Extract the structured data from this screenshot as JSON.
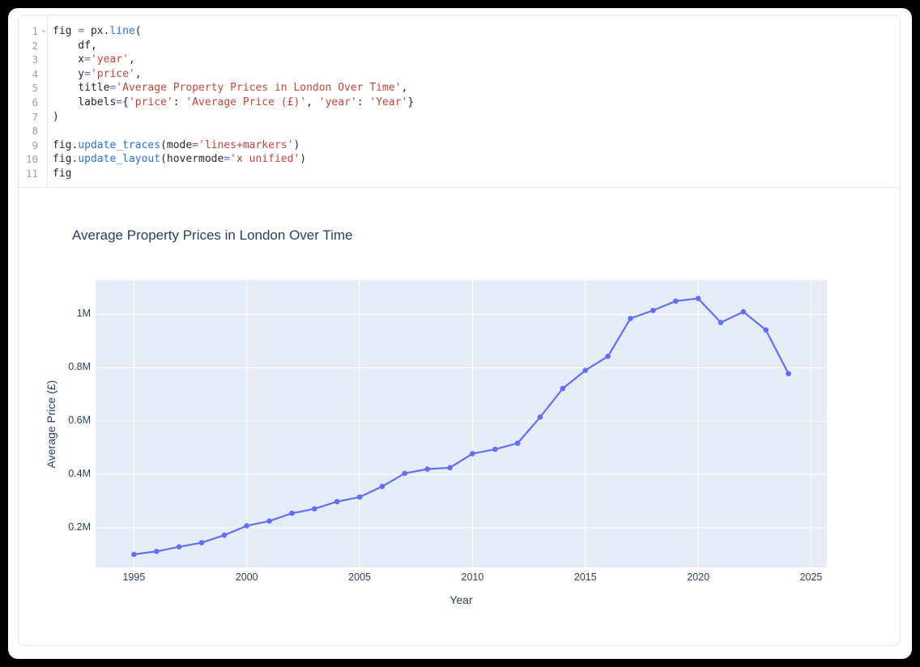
{
  "editor": {
    "fold_icon": "⌄",
    "lines": [
      {
        "num": "1",
        "tokens": [
          [
            "p",
            "fig "
          ],
          [
            "op",
            "="
          ],
          [
            "p",
            " px."
          ],
          [
            "fn",
            "line"
          ],
          [
            "p",
            "("
          ]
        ]
      },
      {
        "num": "2",
        "tokens": [
          [
            "p",
            "    df,"
          ]
        ]
      },
      {
        "num": "3",
        "tokens": [
          [
            "p",
            "    x"
          ],
          [
            "op",
            "="
          ],
          [
            "str",
            "'year'"
          ],
          [
            "p",
            ","
          ]
        ]
      },
      {
        "num": "4",
        "tokens": [
          [
            "p",
            "    y"
          ],
          [
            "op",
            "="
          ],
          [
            "str",
            "'price'"
          ],
          [
            "p",
            ","
          ]
        ]
      },
      {
        "num": "5",
        "tokens": [
          [
            "p",
            "    title"
          ],
          [
            "op",
            "="
          ],
          [
            "str",
            "'Average Property Prices in London Over Time'"
          ],
          [
            "p",
            ","
          ]
        ]
      },
      {
        "num": "6",
        "tokens": [
          [
            "p",
            "    labels"
          ],
          [
            "op",
            "="
          ],
          [
            "p",
            "{"
          ],
          [
            "str",
            "'price'"
          ],
          [
            "p",
            ": "
          ],
          [
            "str",
            "'Average Price (£)'"
          ],
          [
            "p",
            ", "
          ],
          [
            "str",
            "'year'"
          ],
          [
            "p",
            ": "
          ],
          [
            "str",
            "'Year'"
          ],
          [
            "p",
            "}"
          ]
        ]
      },
      {
        "num": "7",
        "tokens": [
          [
            "p",
            ")"
          ]
        ]
      },
      {
        "num": "8",
        "tokens": []
      },
      {
        "num": "9",
        "tokens": [
          [
            "p",
            "fig."
          ],
          [
            "fn",
            "update_traces"
          ],
          [
            "p",
            "(mode"
          ],
          [
            "op",
            "="
          ],
          [
            "str",
            "'lines+markers'"
          ],
          [
            "p",
            ")"
          ]
        ]
      },
      {
        "num": "10",
        "tokens": [
          [
            "p",
            "fig."
          ],
          [
            "fn",
            "update_layout"
          ],
          [
            "p",
            "(hovermode"
          ],
          [
            "op",
            "="
          ],
          [
            "str",
            "'x unified'"
          ],
          [
            "p",
            ")"
          ]
        ]
      },
      {
        "num": "11",
        "tokens": [
          [
            "p",
            "fig"
          ]
        ]
      }
    ]
  },
  "chart_data": {
    "type": "line",
    "title": "Average Property Prices in London Over Time",
    "xlabel": "Year",
    "ylabel": "Average Price (£)",
    "x": [
      1995,
      1996,
      1997,
      1998,
      1999,
      2000,
      2001,
      2002,
      2003,
      2004,
      2005,
      2006,
      2007,
      2008,
      2009,
      2010,
      2011,
      2012,
      2013,
      2014,
      2015,
      2016,
      2017,
      2018,
      2019,
      2020,
      2021,
      2022,
      2023,
      2024
    ],
    "series": [
      {
        "name": "price",
        "mode": "lines+markers",
        "values": [
          100000,
          111000,
          128000,
          144000,
          172000,
          207000,
          225000,
          254000,
          271000,
          298000,
          315000,
          355000,
          404000,
          420000,
          425000,
          478000,
          494000,
          517000,
          615000,
          722000,
          790000,
          843000,
          985000,
          1015000,
          1050000,
          1060000,
          970000,
          1010000,
          942000,
          778000
        ]
      }
    ],
    "xlim": [
      1993.3,
      2025.7
    ],
    "ylim": [
      51000,
      1129000
    ],
    "x_ticks": [
      {
        "value": 1995,
        "label": "1995"
      },
      {
        "value": 2000,
        "label": "2000"
      },
      {
        "value": 2005,
        "label": "2005"
      },
      {
        "value": 2010,
        "label": "2010"
      },
      {
        "value": 2015,
        "label": "2015"
      },
      {
        "value": 2020,
        "label": "2020"
      },
      {
        "value": 2025,
        "label": "2025"
      }
    ],
    "y_ticks": [
      {
        "value": 200000,
        "label": "0.2M"
      },
      {
        "value": 400000,
        "label": "0.4M"
      },
      {
        "value": 600000,
        "label": "0.6M"
      },
      {
        "value": 800000,
        "label": "0.8M"
      },
      {
        "value": 1000000,
        "label": "1M"
      }
    ],
    "grid": "on",
    "legend": "none",
    "colors": {
      "line": "#636EFA",
      "plot_bg": "#E5ECF6",
      "grid": "#ffffff",
      "text": "#2a3f5f"
    }
  }
}
